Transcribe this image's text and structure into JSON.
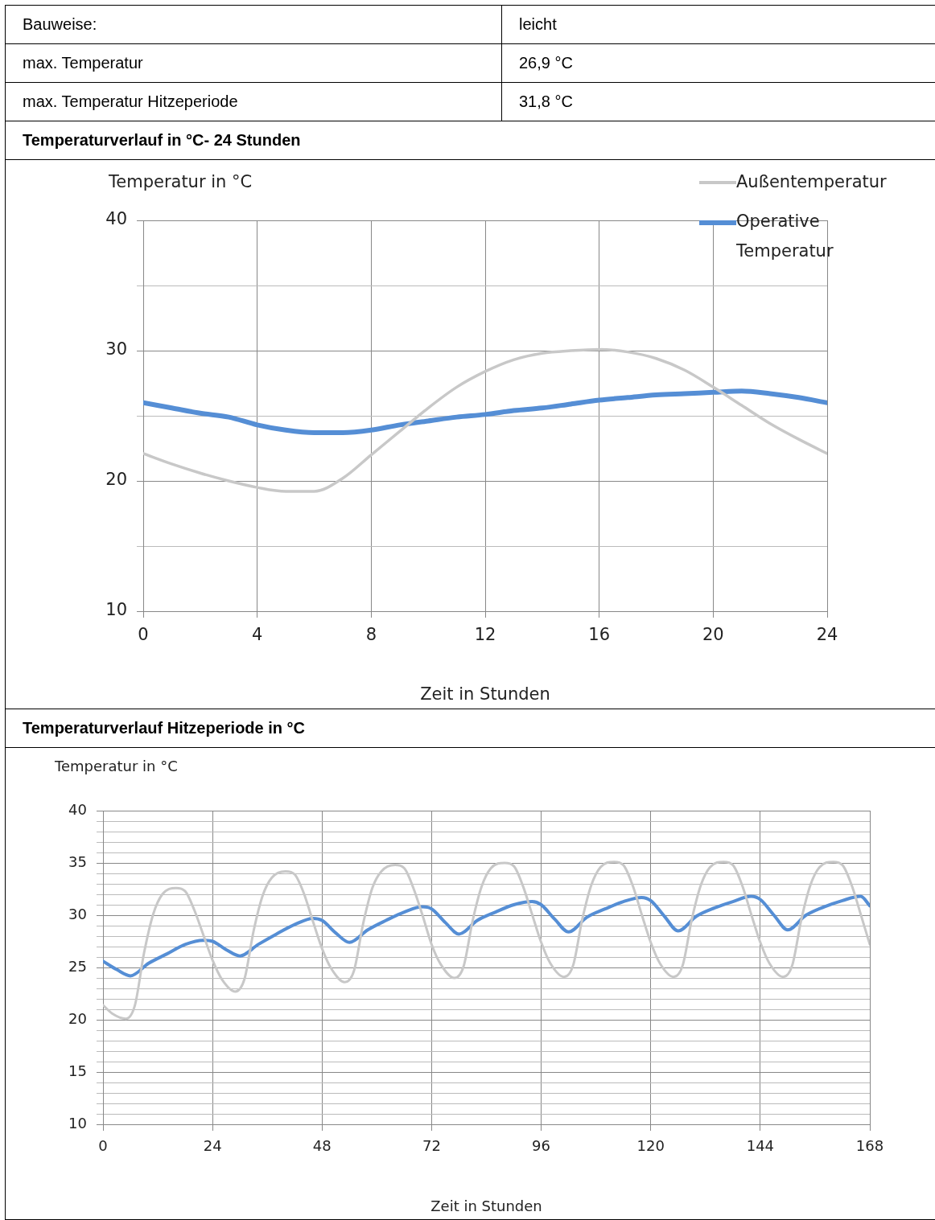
{
  "chart_data": [
    {
      "type": "other",
      "annotations": [
        "Bauweise:",
        "leicht",
        "max. Temperatur",
        "26,9 °C",
        "max. Temperatur Hitzeperiode",
        "31,8 °C"
      ]
    },
    {
      "type": "line",
      "title": "Temperaturverlauf in °C- 24 Stunden",
      "xlabel": "Zeit in Stunden",
      "ylabel": "Temperatur in °C",
      "xlim": [
        0,
        24
      ],
      "xticks": [
        0,
        4,
        8,
        12,
        16,
        20,
        24
      ],
      "ylim": [
        10,
        40
      ],
      "yticks": [
        10,
        {
          "value": 15,
          "label": null
        },
        20,
        {
          "value": 25,
          "label": null
        },
        30,
        {
          "value": 35,
          "label": null
        },
        40
      ],
      "grid": true,
      "legend": "top right",
      "x": [
        0,
        1,
        2,
        3,
        4,
        5,
        6,
        7,
        8,
        9,
        10,
        11,
        12,
        13,
        14,
        15,
        16,
        17,
        18,
        19,
        20,
        21,
        22,
        23,
        24
      ],
      "series": [
        {
          "name": "Außentemperatur",
          "color": "#c8c8c8",
          "values": [
            22.1,
            21.3,
            20.6,
            20.0,
            19.5,
            19.2,
            19.2,
            20.2,
            22.0,
            23.8,
            25.6,
            27.2,
            28.4,
            29.3,
            29.8,
            30.0,
            30.1,
            29.9,
            29.4,
            28.5,
            27.2,
            25.8,
            24.4,
            23.2,
            22.1
          ]
        },
        {
          "name": "Operative Temperatur",
          "color": "#558ed5",
          "values": [
            26.0,
            25.6,
            25.2,
            24.9,
            24.3,
            23.9,
            23.7,
            23.7,
            23.9,
            24.3,
            24.6,
            24.9,
            25.1,
            25.4,
            25.6,
            25.9,
            26.2,
            26.4,
            26.6,
            26.7,
            26.8,
            26.9,
            26.7,
            26.4,
            26.0
          ]
        }
      ]
    },
    {
      "type": "line",
      "title": "Temperaturverlauf Hitzeperiode in °C",
      "xlabel": "Zeit in Stunden",
      "ylabel": "Temperatur in °C",
      "xlim": [
        0,
        168
      ],
      "xticks": [
        0,
        24,
        48,
        72,
        96,
        120,
        144,
        168
      ],
      "ylim": [
        10,
        40
      ],
      "yticks": [
        10,
        {
          "value": 11,
          "label": null
        },
        {
          "value": 12,
          "label": null
        },
        {
          "value": 13,
          "label": null
        },
        {
          "value": 14,
          "label": null
        },
        15,
        {
          "value": 16,
          "label": null
        },
        {
          "value": 17,
          "label": null
        },
        {
          "value": 18,
          "label": null
        },
        {
          "value": 19,
          "label": null
        },
        20,
        {
          "value": 21,
          "label": null
        },
        {
          "value": 22,
          "label": null
        },
        {
          "value": 23,
          "label": null
        },
        {
          "value": 24,
          "label": null
        },
        25,
        {
          "value": 26,
          "label": null
        },
        {
          "value": 27,
          "label": null
        },
        {
          "value": 28,
          "label": null
        },
        {
          "value": 29,
          "label": null
        },
        30,
        {
          "value": 31,
          "label": null
        },
        {
          "value": 32,
          "label": null
        },
        {
          "value": 33,
          "label": null
        },
        {
          "value": 34,
          "label": null
        },
        35,
        {
          "value": 36,
          "label": null
        },
        {
          "value": 37,
          "label": null
        },
        {
          "value": 38,
          "label": null
        },
        {
          "value": 39,
          "label": null
        },
        40
      ],
      "grid": true,
      "series": [
        {
          "color": "#c8c8c8",
          "x": [
            0,
            2,
            5,
            7,
            9,
            11,
            13,
            16,
            18,
            20,
            22,
            24,
            26,
            29,
            31,
            33,
            35,
            37,
            40,
            42,
            44,
            46,
            48,
            50,
            53,
            55,
            57,
            59,
            61,
            64,
            66,
            68,
            70,
            72,
            74,
            77,
            79,
            81,
            83,
            85,
            88,
            90,
            92,
            94,
            96,
            98,
            101,
            103,
            105,
            107,
            109,
            112,
            114,
            116,
            118,
            120,
            122,
            125,
            127,
            129,
            131,
            133,
            136,
            138,
            140,
            142,
            144,
            146,
            149,
            151,
            153,
            155,
            157,
            160,
            162,
            164,
            166,
            168
          ],
          "values": [
            21.4,
            20.6,
            20.1,
            21.4,
            26.4,
            30.1,
            32.0,
            32.6,
            32.3,
            30.5,
            28.1,
            25.7,
            23.9,
            22.7,
            23.9,
            28.5,
            31.9,
            33.6,
            34.2,
            33.9,
            32.1,
            29.4,
            26.8,
            24.9,
            23.6,
            24.7,
            29.2,
            32.6,
            34.2,
            34.8,
            34.5,
            32.6,
            30.0,
            27.2,
            25.3,
            24.0,
            25.1,
            29.5,
            32.8,
            34.5,
            35.0,
            34.7,
            32.8,
            30.1,
            27.4,
            25.4,
            24.1,
            25.2,
            29.6,
            32.9,
            34.6,
            35.1,
            34.8,
            32.9,
            30.1,
            27.4,
            25.4,
            24.1,
            25.2,
            29.6,
            32.9,
            34.6,
            35.1,
            34.8,
            32.9,
            30.1,
            27.4,
            25.4,
            24.1,
            25.2,
            29.6,
            32.9,
            34.6,
            35.1,
            34.8,
            32.9,
            30.1,
            27.2
          ]
        },
        {
          "color": "#558ed5",
          "x": [
            0,
            3,
            6,
            10,
            14,
            18,
            22,
            24,
            27,
            30,
            34,
            38,
            42,
            46,
            48,
            51,
            54,
            58,
            62,
            66,
            70,
            72,
            75,
            78,
            82,
            86,
            90,
            94,
            96,
            99,
            102,
            106,
            110,
            114,
            118,
            120,
            123,
            126,
            130,
            134,
            138,
            142,
            144,
            147,
            150,
            154,
            158,
            162,
            166,
            168
          ],
          "values": [
            25.6,
            24.8,
            24.2,
            25.4,
            26.3,
            27.2,
            27.6,
            27.5,
            26.7,
            26.1,
            27.2,
            28.2,
            29.1,
            29.7,
            29.5,
            28.3,
            27.4,
            28.6,
            29.5,
            30.3,
            30.8,
            30.6,
            29.3,
            28.2,
            29.5,
            30.3,
            31.0,
            31.3,
            31.0,
            29.6,
            28.4,
            29.8,
            30.6,
            31.3,
            31.7,
            31.4,
            29.9,
            28.5,
            29.9,
            30.7,
            31.3,
            31.8,
            31.5,
            30.0,
            28.6,
            30.0,
            30.8,
            31.4,
            31.8,
            30.9
          ]
        }
      ]
    }
  ]
}
